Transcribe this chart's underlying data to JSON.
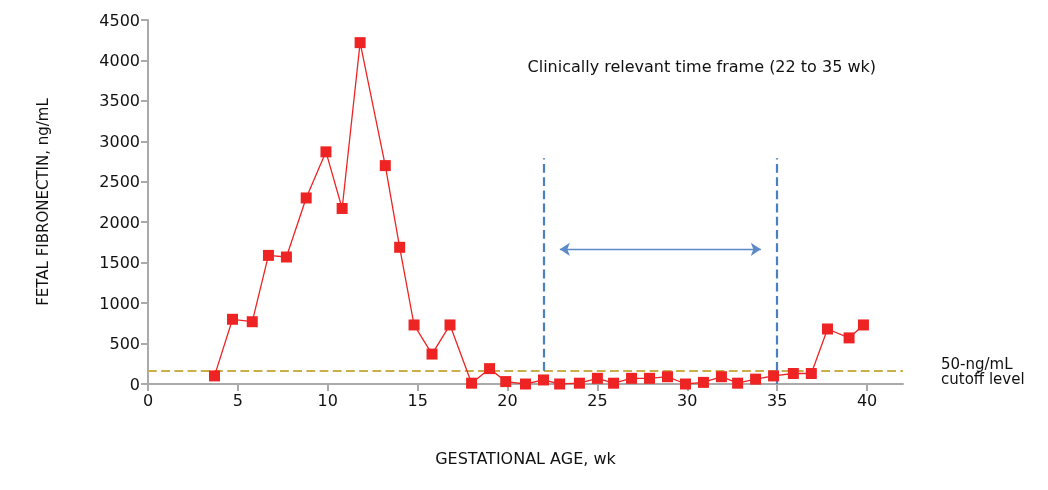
{
  "chart_data": {
    "type": "line",
    "xlabel": "GESTATIONAL AGE, wk",
    "ylabel": "FETAL FIBRONECTIN, ng/mL",
    "x": [
      3.7,
      4.7,
      5.8,
      6.7,
      7.7,
      8.8,
      9.9,
      10.8,
      11.8,
      13.2,
      14.0,
      14.8,
      15.8,
      16.8,
      18.0,
      19.0,
      19.9,
      21.0,
      22.0,
      22.9,
      24.0,
      25.0,
      25.9,
      26.9,
      27.9,
      28.9,
      29.9,
      30.9,
      31.9,
      32.8,
      33.8,
      34.8,
      35.9,
      36.9,
      37.8,
      39.0,
      39.8
    ],
    "series": [
      {
        "color": "#ee2424",
        "values": [
          100,
          800,
          770,
          1590,
          1570,
          2300,
          2870,
          2170,
          4220,
          2700,
          1690,
          730,
          370,
          730,
          10,
          190,
          30,
          0,
          50,
          0,
          10,
          70,
          10,
          70,
          70,
          90,
          0,
          20,
          90,
          10,
          60,
          100,
          130,
          130,
          680,
          570,
          730
        ]
      }
    ],
    "xlim": [
      0,
      42
    ],
    "xticks": [
      0,
      5,
      10,
      15,
      20,
      25,
      30,
      35,
      40
    ],
    "ylim": [
      0,
      4500
    ],
    "yticks": [
      0,
      500,
      1000,
      1500,
      2000,
      2500,
      3000,
      3500,
      4000,
      4500
    ],
    "marker": "square",
    "grid": false,
    "ref_lines": [
      {
        "axis": "y",
        "value": 160,
        "label": "50-ng/mL cutoff level",
        "color": "#c9ae4a",
        "line_style": "dashed"
      },
      {
        "axis": "x",
        "value": 22,
        "color": "#4a7fc1",
        "line_style": "dashed"
      },
      {
        "axis": "x",
        "value": 35,
        "color": "#4a7fc1",
        "line_style": "dashed"
      }
    ],
    "annotations": [
      "Clinically relevant time frame (22 to 35 wk)"
    ]
  }
}
